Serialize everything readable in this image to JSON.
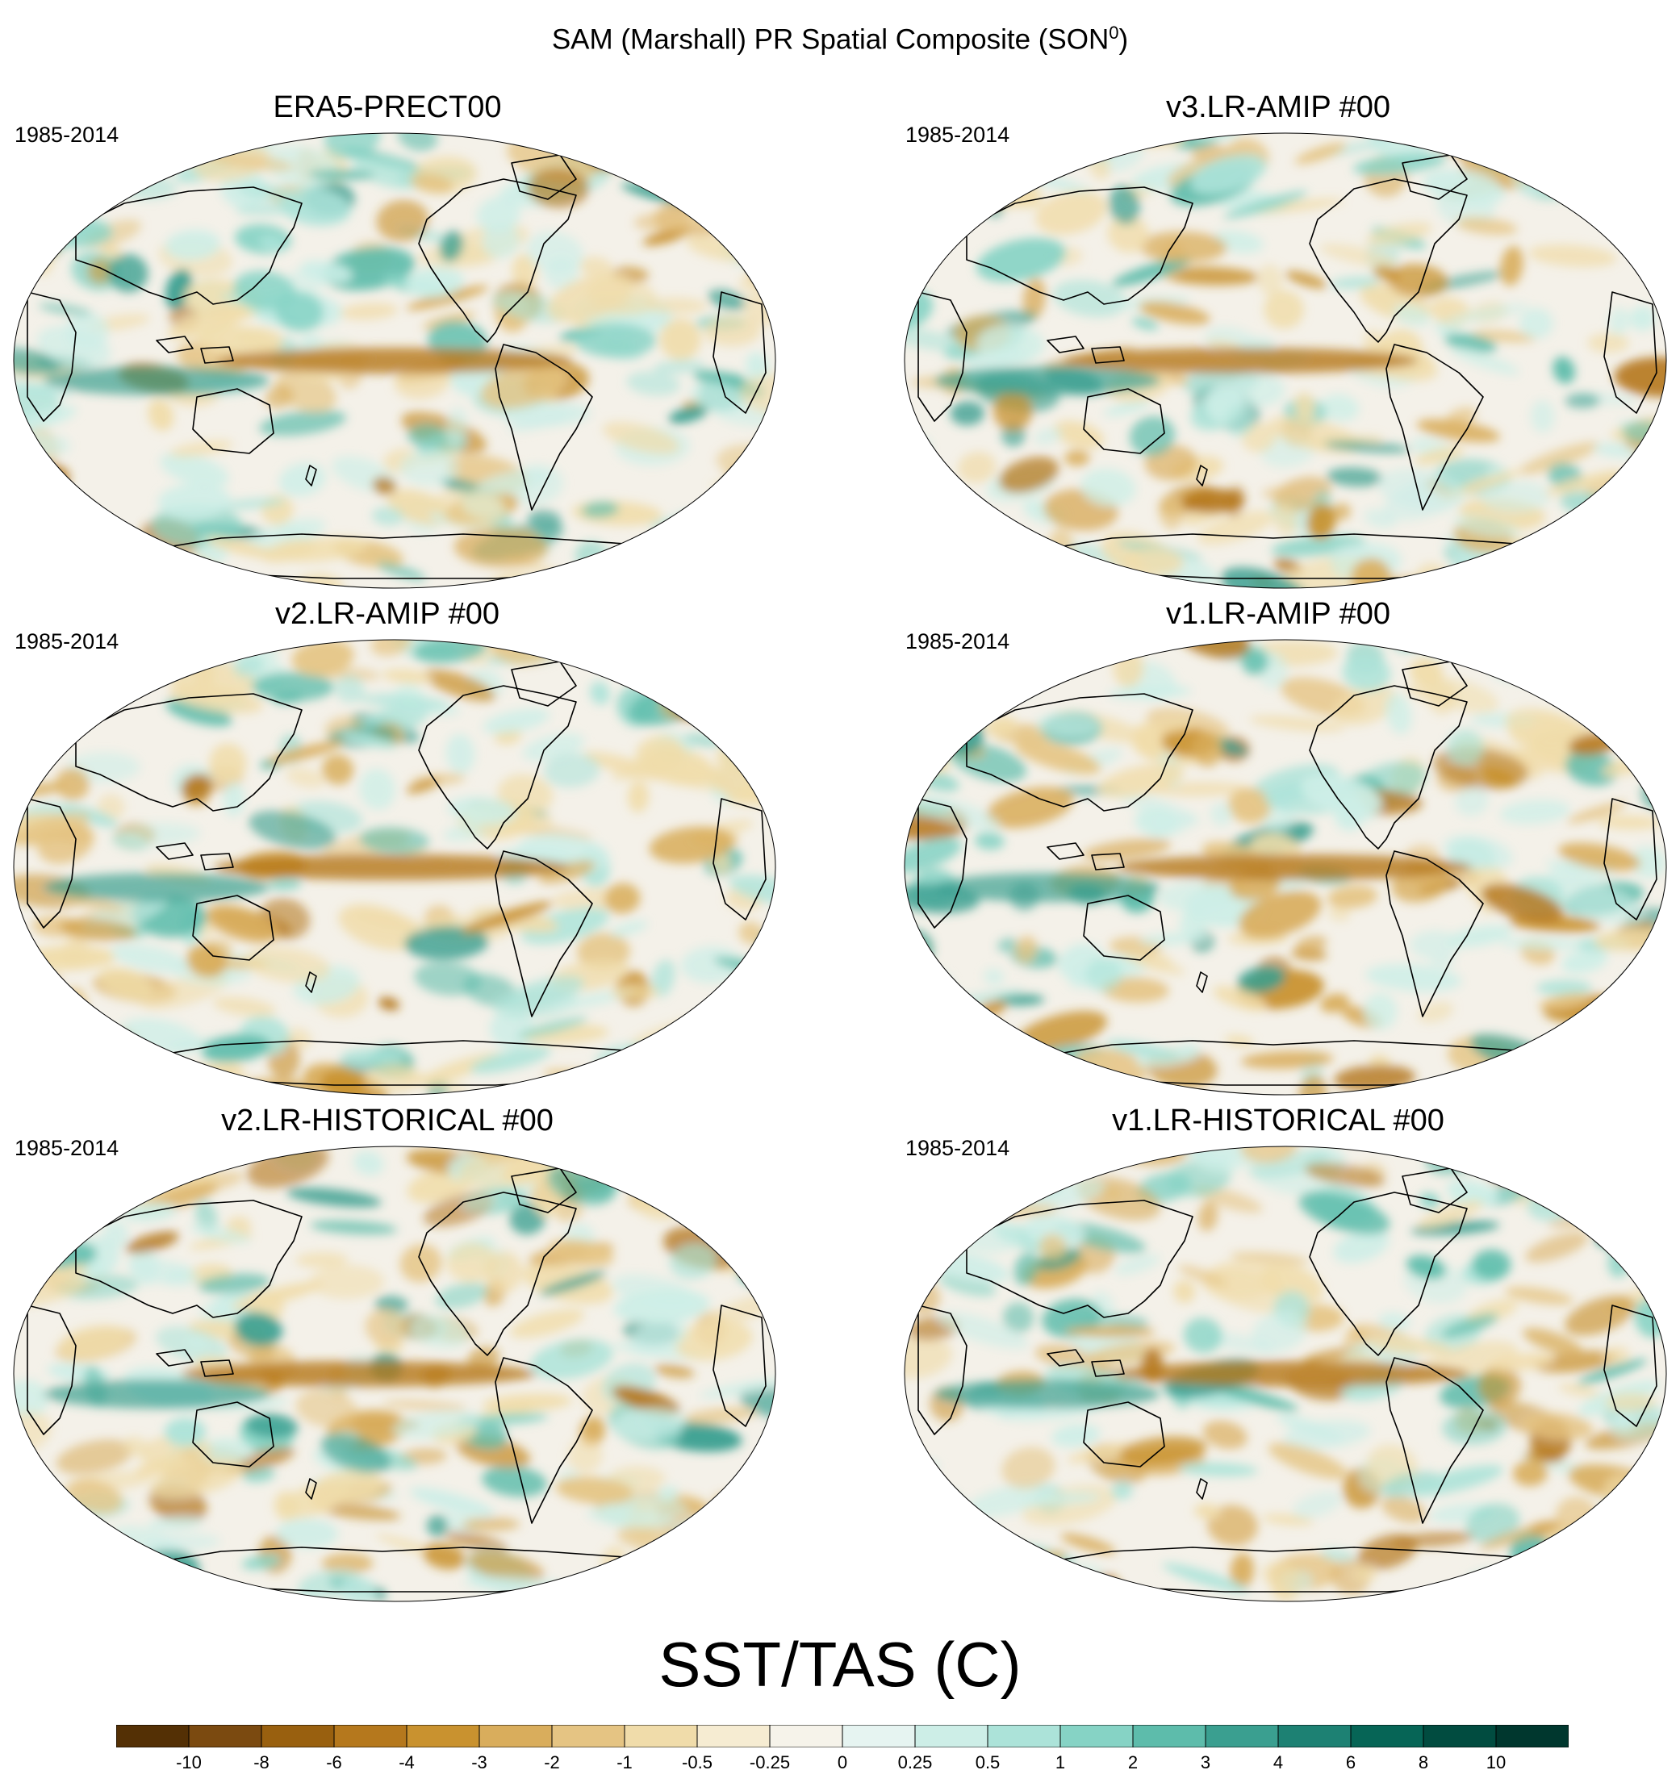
{
  "figure": {
    "title_main": "SAM (Marshall) PR Spatial Composite (SON",
    "title_sup": "0",
    "title_end": ")"
  },
  "panels": [
    {
      "title": "ERA5-PRECT00",
      "years": "1985-2014",
      "seed": 11
    },
    {
      "title": "v3.LR-AMIP  #00",
      "years": "1985-2014",
      "seed": 23
    },
    {
      "title": "v2.LR-AMIP  #00",
      "years": "1985-2014",
      "seed": 37
    },
    {
      "title": "v1.LR-AMIP  #00",
      "years": "1985-2014",
      "seed": 41
    },
    {
      "title": "v2.LR-HISTORICAL  #00",
      "years": "1985-2014",
      "seed": 53
    },
    {
      "title": "v1.LR-HISTORICAL  #00",
      "years": "1985-2014",
      "seed": 67
    }
  ],
  "colorbar": {
    "title": "SST/TAS (C)",
    "labels": [
      "-10",
      "-8",
      "-6",
      "-4",
      "-3",
      "-2",
      "-1",
      "-0.5",
      "-0.25",
      "0",
      "0.25",
      "0.5",
      "1",
      "2",
      "3",
      "4",
      "6",
      "8",
      "10"
    ],
    "colors": [
      "#543005",
      "#7b4a10",
      "#99600f",
      "#b5781d",
      "#c9922f",
      "#d9ad5c",
      "#e5c483",
      "#f0dcaa",
      "#f6ecd2",
      "#f6f3ea",
      "#e6f4f1",
      "#cdeee7",
      "#ace3d9",
      "#86d3c5",
      "#5dbcab",
      "#3a9f90",
      "#1d8173",
      "#066556",
      "#014c40",
      "#00372e"
    ]
  }
}
